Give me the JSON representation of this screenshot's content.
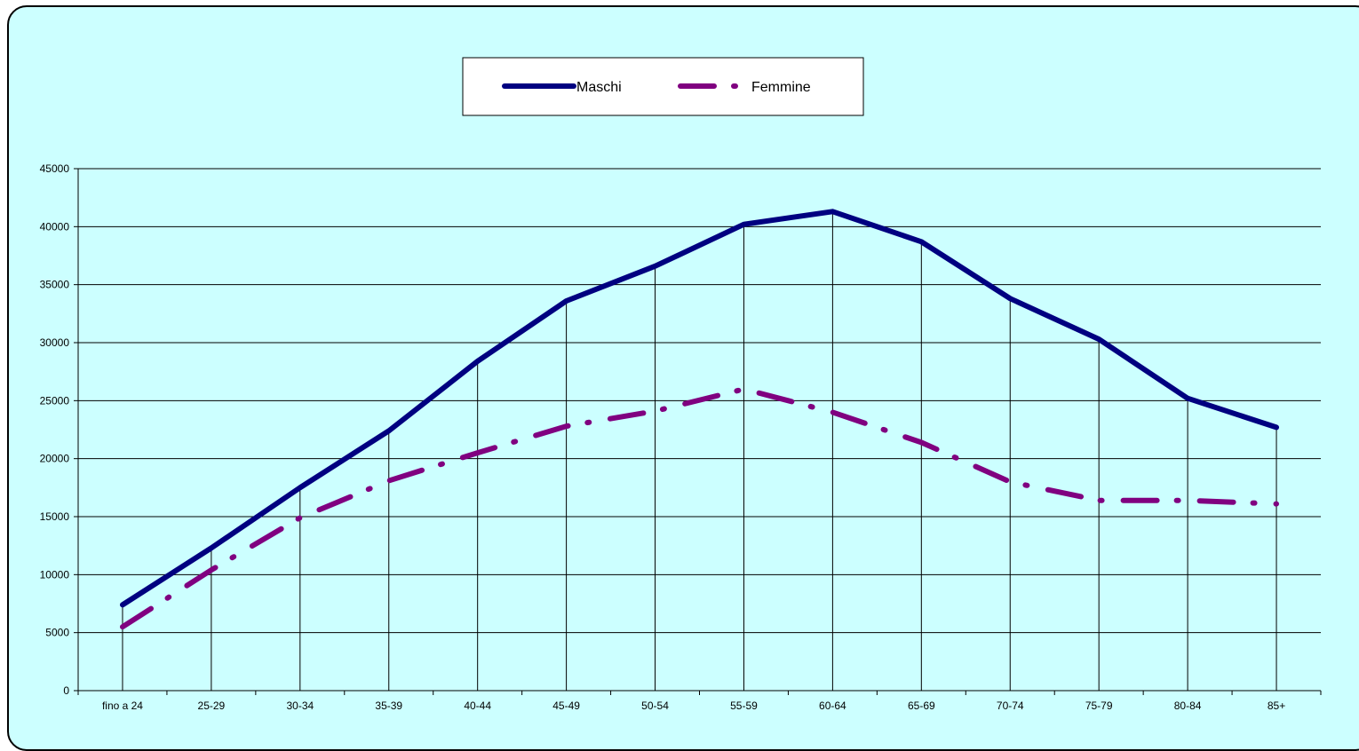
{
  "chart_data": {
    "type": "line",
    "title": "",
    "xlabel": "",
    "ylabel": "",
    "categories": [
      "fino a 24",
      "25-29",
      "30-34",
      "35-39",
      "40-44",
      "45-49",
      "50-54",
      "55-59",
      "60-64",
      "65-69",
      "70-74",
      "75-79",
      "80-84",
      "85+"
    ],
    "ylim": [
      0,
      45000
    ],
    "yticks": [
      0,
      5000,
      10000,
      15000,
      20000,
      25000,
      30000,
      35000,
      40000,
      45000
    ],
    "grid": true,
    "legend_position": "top-center",
    "series": [
      {
        "name": "Maschi",
        "color": "#000080",
        "style": "solid",
        "values": [
          7400,
          12300,
          17500,
          22400,
          28400,
          33600,
          36600,
          40200,
          41300,
          38700,
          33800,
          30300,
          25200,
          22700
        ]
      },
      {
        "name": "Femmine",
        "color": "#800080",
        "style": "dash-dot",
        "values": [
          5500,
          10400,
          14900,
          18100,
          20500,
          22800,
          24100,
          26000,
          24000,
          21400,
          18000,
          16400,
          16400,
          16100
        ]
      }
    ]
  }
}
